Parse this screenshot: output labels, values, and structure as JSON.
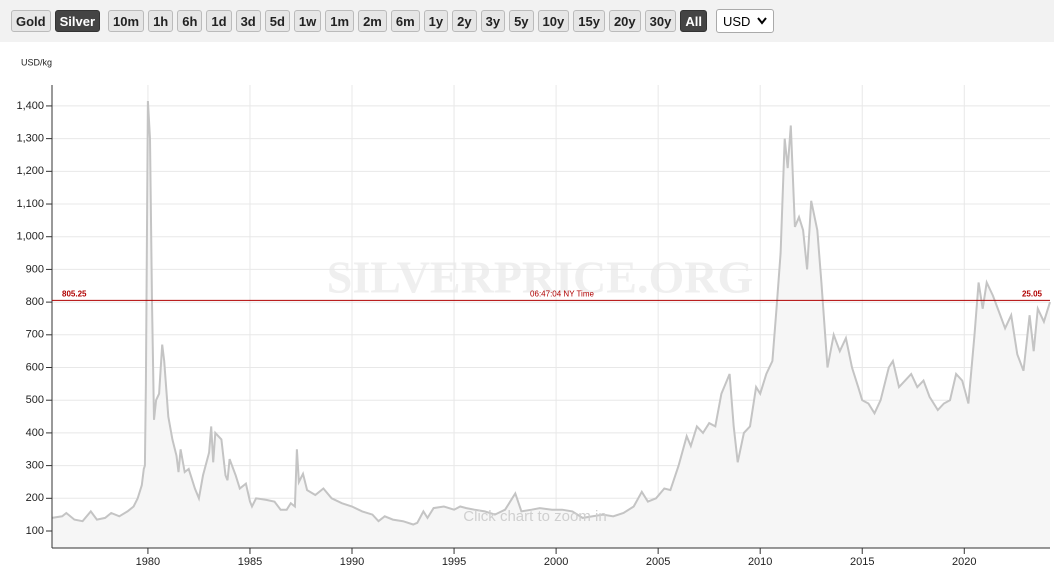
{
  "toolbar": {
    "buttons": [
      {
        "label": "Gold",
        "active": false
      },
      {
        "label": "Silver",
        "active": true
      },
      {
        "label": "10m",
        "active": false
      },
      {
        "label": "1h",
        "active": false
      },
      {
        "label": "6h",
        "active": false
      },
      {
        "label": "1d",
        "active": false
      },
      {
        "label": "3d",
        "active": false
      },
      {
        "label": "5d",
        "active": false
      },
      {
        "label": "1w",
        "active": false
      },
      {
        "label": "1m",
        "active": false
      },
      {
        "label": "2m",
        "active": false
      },
      {
        "label": "6m",
        "active": false
      },
      {
        "label": "1y",
        "active": false
      },
      {
        "label": "2y",
        "active": false
      },
      {
        "label": "3y",
        "active": false
      },
      {
        "label": "5y",
        "active": false
      },
      {
        "label": "10y",
        "active": false
      },
      {
        "label": "15y",
        "active": false
      },
      {
        "label": "20y",
        "active": false
      },
      {
        "label": "30y",
        "active": false
      },
      {
        "label": "All",
        "active": true
      }
    ],
    "currency": "USD"
  },
  "chart_data": {
    "type": "line",
    "y_axis_label": "USD/kg",
    "watermark": "SILVERPRICE.ORG",
    "hint": "Click chart to zoom in",
    "current_price": 805.25,
    "current_time": "06:47:04 NY Time",
    "current_price_oz": 25.05,
    "current_color": "#b00000",
    "color": "#c4c4c4",
    "fill": "#f6f6f6",
    "grid": true,
    "xlim": [
      1975.3,
      2024.2
    ],
    "xticks": [
      1980,
      1985,
      1990,
      1995,
      2000,
      2005,
      2010,
      2015,
      2020
    ],
    "ylim": [
      48,
      1464
    ],
    "yticks": [
      100,
      200,
      300,
      400,
      500,
      600,
      700,
      800,
      900,
      {
        "value": 1000,
        "label": "1,000"
      },
      {
        "value": 1100,
        "label": "1,100"
      },
      {
        "value": 1200,
        "label": "1,200"
      },
      {
        "value": 1300,
        "label": "1,300"
      },
      {
        "value": 1400,
        "label": "1,400"
      }
    ],
    "x": [
      1975.3,
      1975.8,
      1976.0,
      1976.4,
      1976.8,
      1977.2,
      1977.5,
      1977.9,
      1978.2,
      1978.6,
      1979.0,
      1979.3,
      1979.5,
      1979.7,
      1979.8,
      1979.85,
      1979.9,
      1980.0,
      1980.1,
      1980.2,
      1980.3,
      1980.4,
      1980.55,
      1980.7,
      1980.8,
      1981.0,
      1981.2,
      1981.4,
      1981.5,
      1981.6,
      1981.8,
      1982.0,
      1982.3,
      1982.5,
      1982.7,
      1983.0,
      1983.1,
      1983.2,
      1983.3,
      1983.6,
      1983.8,
      1983.9,
      1984.0,
      1984.3,
      1984.5,
      1984.8,
      1985.0,
      1985.1,
      1985.3,
      1985.8,
      1986.2,
      1986.5,
      1986.8,
      1987.0,
      1987.2,
      1987.3,
      1987.4,
      1987.6,
      1987.8,
      1988.2,
      1988.6,
      1989.0,
      1989.5,
      1990.0,
      1990.5,
      1991.0,
      1991.3,
      1991.6,
      1992.0,
      1992.5,
      1993.0,
      1993.2,
      1993.5,
      1993.7,
      1994.0,
      1994.5,
      1995.0,
      1995.3,
      1995.6,
      1996.0,
      1996.5,
      1997.0,
      1997.5,
      1998.0,
      1998.3,
      1998.8,
      1999.2,
      1999.8,
      2000.3,
      2000.8,
      2001.3,
      2001.8,
      2002.3,
      2002.8,
      2003.3,
      2003.8,
      2004.2,
      2004.5,
      2004.9,
      2005.3,
      2005.6,
      2006.0,
      2006.4,
      2006.6,
      2006.9,
      2007.2,
      2007.5,
      2007.8,
      2008.1,
      2008.3,
      2008.5,
      2008.7,
      2008.9,
      2009.2,
      2009.5,
      2009.8,
      2010.0,
      2010.3,
      2010.6,
      2010.8,
      2011.0,
      2011.2,
      2011.35,
      2011.5,
      2011.7,
      2011.9,
      2012.1,
      2012.3,
      2012.5,
      2012.8,
      2013.0,
      2013.3,
      2013.6,
      2013.9,
      2014.2,
      2014.5,
      2014.8,
      2015.0,
      2015.3,
      2015.6,
      2015.9,
      2016.3,
      2016.5,
      2016.8,
      2017.1,
      2017.4,
      2017.7,
      2018.0,
      2018.3,
      2018.7,
      2019.0,
      2019.3,
      2019.6,
      2019.9,
      2020.2,
      2020.5,
      2020.7,
      2020.9,
      2021.1,
      2021.4,
      2021.7,
      2022.0,
      2022.3,
      2022.6,
      2022.9,
      2023.2,
      2023.4,
      2023.6,
      2023.9,
      2024.2
    ],
    "values": [
      140,
      145,
      155,
      135,
      130,
      160,
      135,
      140,
      155,
      145,
      160,
      175,
      200,
      240,
      290,
      300,
      550,
      1415,
      1300,
      800,
      440,
      500,
      520,
      670,
      620,
      450,
      380,
      330,
      280,
      350,
      280,
      290,
      230,
      200,
      270,
      340,
      420,
      310,
      400,
      380,
      270,
      255,
      320,
      270,
      230,
      245,
      190,
      175,
      200,
      195,
      190,
      165,
      165,
      185,
      175,
      350,
      250,
      275,
      225,
      210,
      230,
      200,
      185,
      175,
      160,
      150,
      130,
      145,
      135,
      130,
      120,
      125,
      160,
      140,
      170,
      175,
      165,
      175,
      170,
      165,
      160,
      150,
      165,
      215,
      160,
      165,
      170,
      165,
      165,
      160,
      140,
      145,
      150,
      145,
      155,
      175,
      220,
      190,
      200,
      230,
      225,
      300,
      390,
      360,
      420,
      400,
      430,
      420,
      520,
      550,
      580,
      420,
      310,
      400,
      420,
      540,
      520,
      580,
      620,
      780,
      950,
      1300,
      1210,
      1340,
      1030,
      1060,
      1020,
      900,
      1110,
      1020,
      860,
      600,
      700,
      650,
      690,
      600,
      540,
      500,
      490,
      460,
      500,
      600,
      620,
      540,
      560,
      580,
      540,
      560,
      510,
      470,
      490,
      500,
      580,
      560,
      490,
      700,
      860,
      780,
      860,
      820,
      770,
      720,
      760,
      640,
      590,
      760,
      650,
      780,
      740,
      800
    ]
  }
}
